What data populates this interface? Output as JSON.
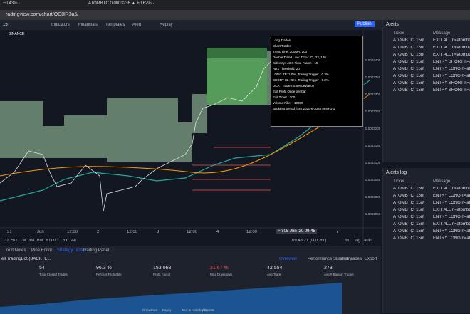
{
  "browser": {
    "tabs": [
      "+0.43% ·",
      "ATOMBTC 0.0003236 ▲ +0.62% ·"
    ],
    "url": "radingview.com/chart/OC8lR3a5/"
  },
  "toolbar": {
    "symbol": "15",
    "exchange": "BINANCE",
    "items": [
      "Indicators",
      "Financials",
      "Templates",
      "Alert",
      "Replay"
    ],
    "publish": "Publish"
  },
  "settings_box": {
    "lines": [
      "Long Trades",
      "Short Trades",
      "Trend Line: 200MA, 200",
      "Double Trend Line: TEnv: 71, 23, 120",
      "Sideways ADX Time Frame : 15",
      "ADX Threshold: 20",
      "LONG TP: 1.0%, Trailing Trigger : 0.3%",
      "SHORT SL : 6%, Trailing Trigger : 0.3%",
      "DCA : TradeS 0.5% deviation",
      "Exit Profit Once per bar",
      "Exit Timer : 100",
      "Volume Filter : 10000",
      "Backtest period from 2020-6-30 to 9999-1-1"
    ]
  },
  "chart": {
    "x_labels": [
      "31",
      "Jun",
      "12:00",
      "2",
      "12:00",
      "3",
      "12:00",
      "4",
      "12:00",
      "5",
      "12:00",
      "7"
    ],
    "price_labels": [
      "0.0003400",
      "0.0003350",
      "0.0003300",
      "0.0003250",
      "0.0003200",
      "0.0003150",
      "0.0003100",
      "0.0003050",
      "0.0003000",
      "0.0002950"
    ],
    "cursor_time": "Fri 05 Jun '20  09:45",
    "ranges": [
      "1D",
      "5D",
      "1M",
      "3M",
      "6M",
      "YTD",
      "1Y",
      "5Y",
      "All"
    ],
    "clock": "09:48:21 (UTC+1)",
    "scale_opts": [
      "%",
      "log",
      "auto"
    ]
  },
  "alerts": {
    "title": "Alerts",
    "headers": [
      "Ticker",
      "Message"
    ],
    "rows": [
      [
        "ATOMBTC, 15m",
        "EXIT ALL n=atombtc e=binance"
      ],
      [
        "ATOMBTC, 15m",
        "EXIT ALL n=atombtc e=binance"
      ],
      [
        "ATOMBTC, 15m",
        "EXIT ALL n=atombtc e=binance"
      ],
      [
        "ATOMBTC, 15m",
        "ENTRY SHORT n=atombtc e=binance"
      ],
      [
        "ATOMBTC, 15m",
        "ENTRY LONG n=atombtc e=binance"
      ],
      [
        "ATOMBTC, 15m",
        "ENTRY LONG n=atombtc e=binance"
      ],
      [
        "ATOMBTC, 15m",
        "ENTRY SHORT n=atombtc e=binance"
      ],
      [
        "ATOMBTC, 15m",
        "ENTRY SHORT n=atombtc e=binance"
      ]
    ]
  },
  "alerts_log": {
    "title": "Alerts log",
    "headers": [
      "Ticker",
      "Message"
    ],
    "rows": [
      [
        "ATOMBTC, 15m",
        "EXIT ALL n=atombtc e=binance"
      ],
      [
        "ATOMBTC, 15m",
        "ENTRY LONG n=atombtc e=binance"
      ],
      [
        "ATOMBTC, 15m",
        "ENTRY LONG n=atombtc e=binance"
      ],
      [
        "ATOMBTC, 15m",
        "EXIT ALL n=atombtc e=binance"
      ],
      [
        "ATOMBTC, 15m",
        "ENTRY LONG n=atombtc e=binance"
      ],
      [
        "ATOMBTC, 15m",
        "EXIT ALL n=atombtc e=binance"
      ],
      [
        "ATOMBTC, 15m",
        "ENTRY LONG n=atombtc e=binance"
      ],
      [
        "ATOMBTC, 15m",
        "ENTRY LONG n=atombtc e=binance"
      ]
    ]
  },
  "bottom": {
    "tabs": [
      "Text Notes",
      "Pine Editor",
      "Strategy Tester",
      "Trading Panel"
    ],
    "strategy": "ell TradingBot (BACKTE...",
    "report_tabs": [
      "Overview",
      "Performance Summary",
      "List of Trades",
      "Export"
    ],
    "stats": [
      {
        "value": "54",
        "label": "Total Closed Trades"
      },
      {
        "value": "96.3 %",
        "label": "Percent Profitable"
      },
      {
        "value": "153.068",
        "label": "Profit Factor"
      },
      {
        "value": "21.67 %",
        "label": "Max Drawdown"
      },
      {
        "value": "42.554",
        "label": "Avg Trade"
      },
      {
        "value": "273",
        "label": "Avg # Bars in Trades"
      }
    ],
    "legend": [
      "Drawdown",
      "Equity",
      "Buy & Hold Equity",
      "Absolute"
    ]
  }
}
